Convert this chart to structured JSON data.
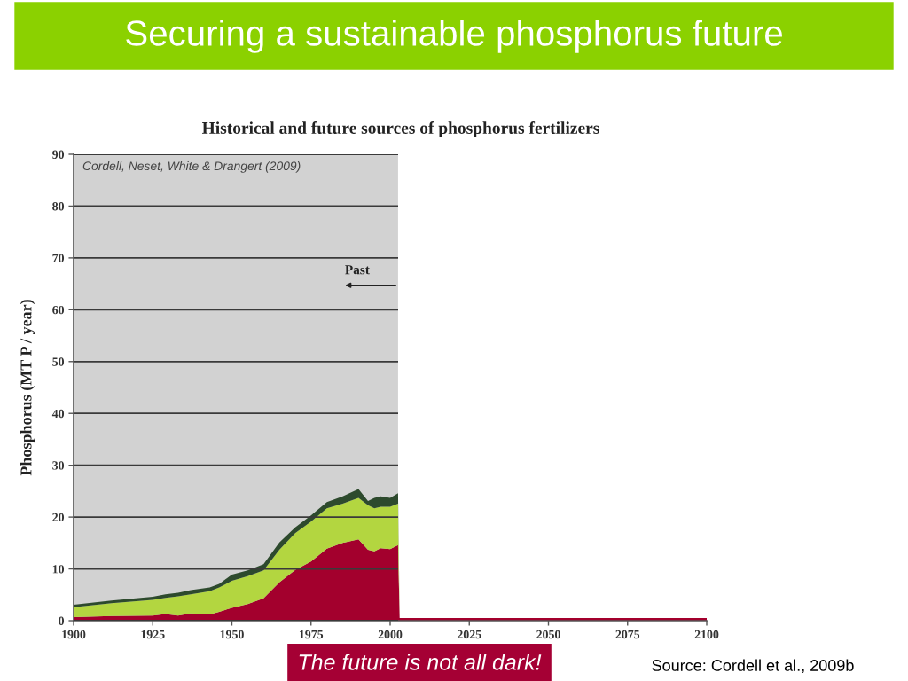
{
  "chart_data": {
    "type": "area",
    "title": "Securing a sustainable phosphorus future",
    "subtitle": "Historical and future sources of phosphorus fertilizers",
    "ylabel": "Phosphorus (MT P / year)",
    "annotations": [
      "Cordell, Neset, White & Drangert (2009)",
      "Past",
      "The future is not all dark!",
      "Source: Cordell et al., 2009b"
    ],
    "x": [
      1900,
      1912,
      1925,
      1929,
      1933,
      1937,
      1943,
      1946,
      1950,
      1955,
      1960,
      1965,
      1970,
      1975,
      1980,
      1985,
      1990,
      1993,
      1995,
      1997,
      2000,
      2002.5,
      2003,
      2100
    ],
    "stacked": true,
    "series": [
      {
        "color": "#a3002d",
        "values": [
          0.7,
          0.9,
          1.0,
          1.3,
          1.0,
          1.4,
          1.2,
          1.7,
          2.5,
          3.2,
          4.3,
          7.4,
          9.8,
          11.4,
          13.9,
          15.0,
          15.7,
          13.7,
          13.4,
          14.0,
          13.8,
          14.6,
          0.5,
          0.5
        ]
      },
      {
        "color": "#b3d640",
        "values": [
          1.9,
          2.5,
          3.0,
          3.1,
          3.7,
          3.7,
          4.5,
          4.7,
          5.2,
          5.4,
          5.4,
          6.3,
          7.1,
          7.7,
          7.8,
          7.6,
          8.0,
          8.6,
          8.3,
          8.0,
          8.2,
          8.0,
          0,
          0
        ]
      },
      {
        "color": "#2d4a2d",
        "values": [
          0.5,
          0.5,
          0.6,
          0.7,
          0.7,
          0.8,
          0.7,
          0.7,
          1.2,
          1.1,
          1.2,
          1.4,
          1.1,
          1.2,
          1.2,
          1.4,
          1.7,
          0.8,
          2.0,
          2.0,
          1.7,
          2.0,
          0,
          0
        ]
      }
    ],
    "xlim": [
      1900,
      2100
    ],
    "ylim": [
      0,
      90
    ],
    "xticks": [
      1900,
      1925,
      1950,
      1975,
      2000,
      2025,
      2050,
      2075,
      2100
    ],
    "yticks": [
      0,
      10,
      20,
      30,
      40,
      50,
      60,
      70,
      80,
      90
    ],
    "grid": "y",
    "bands": [
      {
        "axis": "x",
        "from": 1900,
        "to": 2002.5,
        "color": "#d2d2d2"
      }
    ]
  }
}
